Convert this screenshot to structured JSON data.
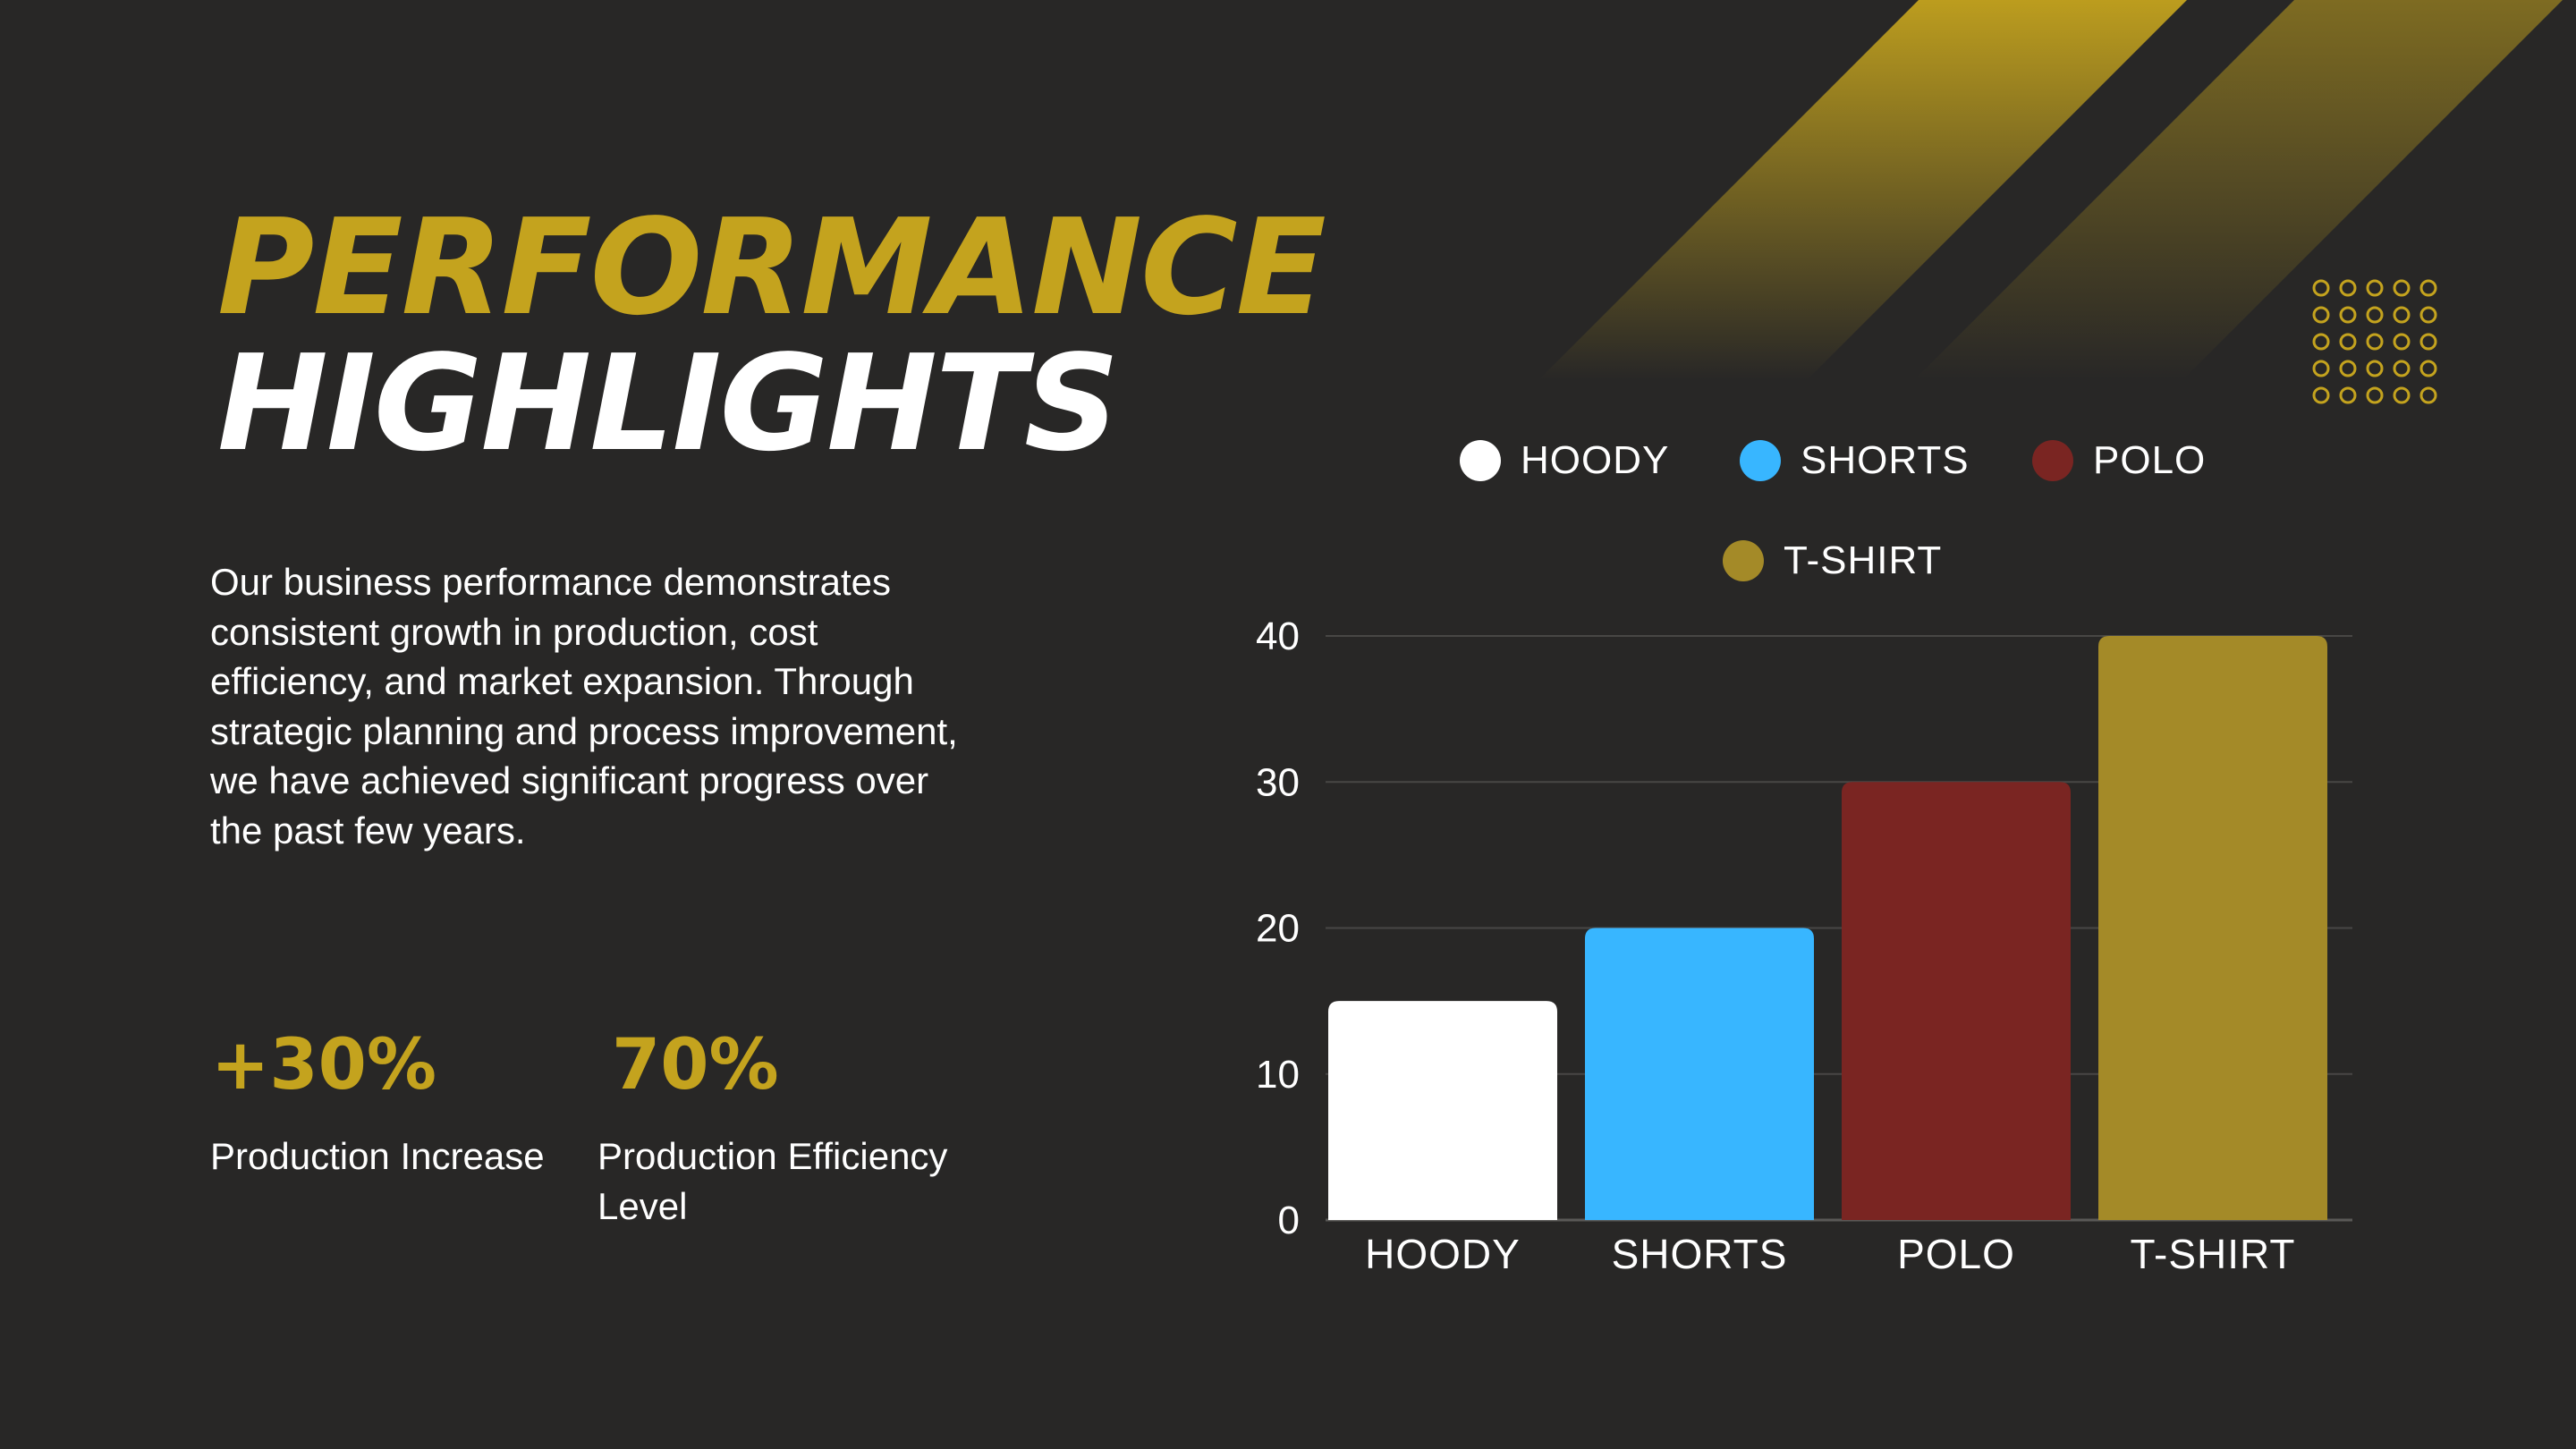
{
  "heading": {
    "line1": "PERFORMANCE",
    "line2": "HIGHLIGHTS"
  },
  "description": "Our business performance demonstrates consistent growth in production, cost efficiency, and market expansion. Through strategic planning and process improvement, we have achieved significant progress over the past few years.",
  "stats": [
    {
      "value": "+30%",
      "label": "Production Increase"
    },
    {
      "value": "70%",
      "label": "Production Efficiency Level"
    }
  ],
  "colors": {
    "background": "#282726",
    "accent": "#c4a31e",
    "text": "#ffffff"
  },
  "chart_data": {
    "type": "bar",
    "categories": [
      "HOODY",
      "SHORTS",
      "POLO",
      "T-SHIRT"
    ],
    "values": [
      15,
      20,
      30,
      40
    ],
    "colors": [
      "#ffffff",
      "#38b6ff",
      "#7a2522",
      "#a48a28"
    ],
    "legend": [
      "HOODY",
      "SHORTS",
      "POLO",
      "T-SHIRT"
    ],
    "legend_position": "top",
    "ylim": [
      0,
      40
    ],
    "yticks": [
      0,
      10,
      20,
      30,
      40
    ],
    "grid": true,
    "title": "",
    "xlabel": "",
    "ylabel": ""
  }
}
